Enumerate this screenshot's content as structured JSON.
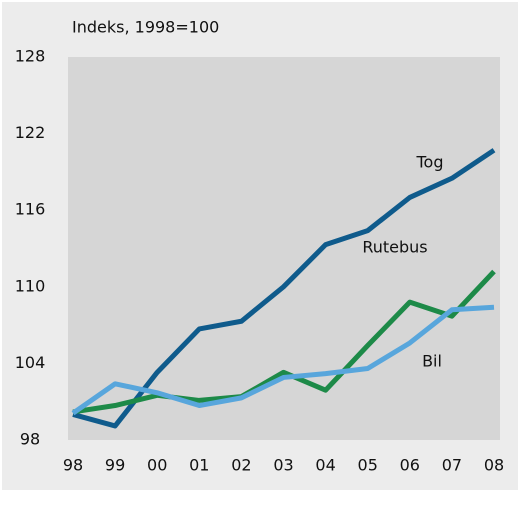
{
  "chart_data": {
    "type": "line",
    "y_axis_label": "Indeks, 1998=100",
    "categories": [
      "98",
      "99",
      "00",
      "01",
      "02",
      "03",
      "04",
      "05",
      "06",
      "07",
      "08"
    ],
    "series": [
      {
        "name": "Tog",
        "color": "#0f5b8c",
        "values": [
          100,
          99.1,
          103.3,
          106.7,
          107.3,
          110,
          113.3,
          114.4,
          117,
          118.5,
          120.7
        ]
      },
      {
        "name": "Rutebus",
        "color": "#1d8a48",
        "values": [
          100.2,
          100.7,
          101.5,
          101.1,
          101.4,
          103.3,
          101.9,
          105.4,
          108.8,
          107.7,
          111.2
        ]
      },
      {
        "name": "Bil",
        "color": "#58a6dc",
        "values": [
          100.1,
          102.4,
          101.7,
          100.7,
          101.3,
          102.9,
          103.2,
          103.6,
          105.6,
          108.2,
          108.4
        ]
      }
    ],
    "ylim": [
      98,
      128
    ],
    "yticks": [
      98,
      104,
      110,
      116,
      122,
      128
    ]
  }
}
